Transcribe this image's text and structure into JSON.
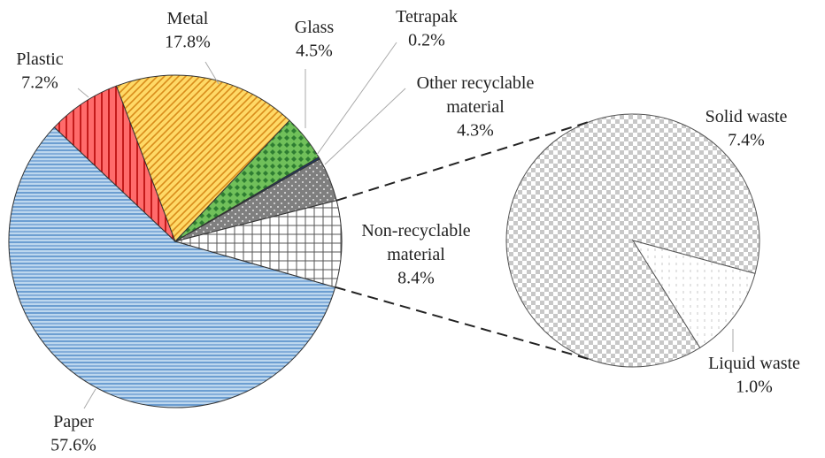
{
  "chart_data": {
    "type": "pie",
    "categories": [
      "Paper",
      "Plastic",
      "Metal",
      "Glass",
      "Tetrapak",
      "Other recyclable material",
      "Non-recyclable material"
    ],
    "values": [
      57.6,
      7.2,
      17.8,
      4.5,
      0.2,
      4.3,
      8.4
    ],
    "value_labels": [
      "57.6%",
      "7.2%",
      "17.8%",
      "4.5%",
      "0.2%",
      "4.3%",
      "8.4%"
    ],
    "colors": [
      "#bdd7ee",
      "#ff6b6b",
      "#ffd966",
      "#70c05a",
      "#1f3864",
      "#7f7f7f",
      "#ffffff"
    ],
    "split": {
      "categories": [
        "Solid waste",
        "Liquid waste"
      ],
      "values": [
        7.4,
        1.0
      ],
      "value_labels": [
        "7.4%",
        "1.0%"
      ],
      "colors": [
        "#ffffff",
        "#ffffff"
      ]
    }
  }
}
